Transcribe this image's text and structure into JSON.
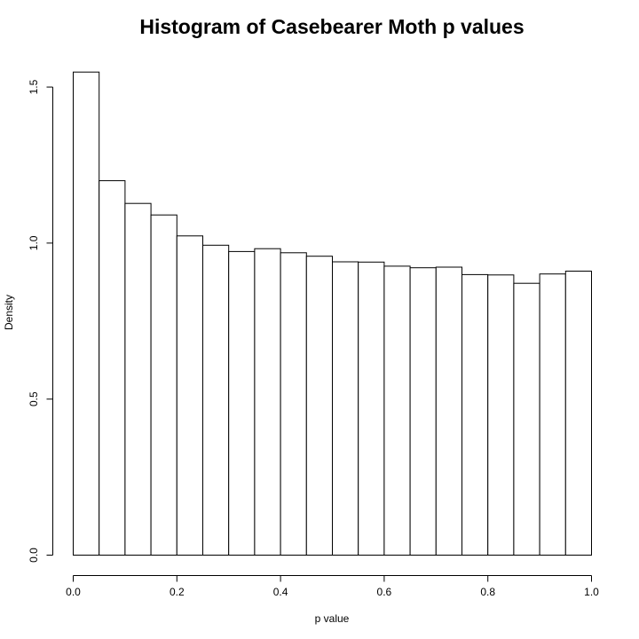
{
  "chart_data": {
    "type": "bar",
    "title": "Histogram of Casebearer Moth p values",
    "xlabel": "p value",
    "ylabel": "Density",
    "xlim": [
      0,
      1
    ],
    "ylim": [
      0,
      1.55
    ],
    "x_ticks": [
      "0.0",
      "0.2",
      "0.4",
      "0.6",
      "0.8",
      "1.0"
    ],
    "y_ticks": [
      "0.0",
      "0.5",
      "1.0",
      "1.5"
    ],
    "bin_edges": [
      0.0,
      0.05,
      0.1,
      0.15,
      0.2,
      0.25,
      0.3,
      0.35,
      0.4,
      0.45,
      0.5,
      0.55,
      0.6,
      0.65,
      0.7,
      0.75,
      0.8,
      0.85,
      0.9,
      0.95,
      1.0
    ],
    "values": [
      1.548,
      1.2,
      1.127,
      1.09,
      1.023,
      0.993,
      0.973,
      0.982,
      0.969,
      0.958,
      0.94,
      0.939,
      0.926,
      0.921,
      0.923,
      0.899,
      0.898,
      0.871,
      0.901,
      0.91
    ],
    "grid": false,
    "legend": "none",
    "bar_fill": "#ffffff",
    "bar_stroke": "#000000"
  }
}
